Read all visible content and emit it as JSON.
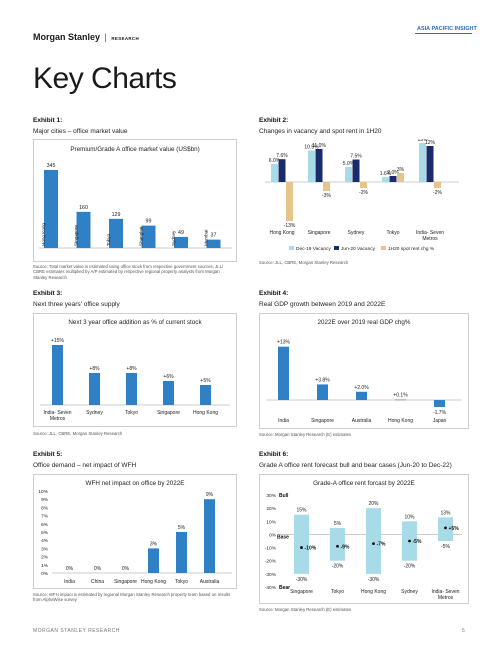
{
  "header": {
    "brand": "Morgan Stanley",
    "brand_suffix": "RESEARCH",
    "region_tag": "ASIA PACIFIC INSIGHT"
  },
  "page_title": "Key Charts",
  "footer": {
    "left": "MORGAN STANLEY RESEARCH",
    "page": "5"
  },
  "colors": {
    "bar_blue": "#2f80c4",
    "navy": "#1b2a6b",
    "light_blue": "#a8dbe8",
    "tan": "#e6c48a"
  },
  "exhibits": [
    {
      "label": "Exhibit 1:",
      "subtitle": "Major cities – office market value",
      "source": "Source: Total market value is estimated using office stock from respective government sources, JLL/ CBRE estimates multiplied by A/P estimated by respective regional property analysts from Morgan Stanley Research"
    },
    {
      "label": "Exhibit 2:",
      "subtitle": "Changes in vacancy and spot rent in 1H20",
      "source": "Source: JLL, CBRE, Morgan Stanley Research"
    },
    {
      "label": "Exhibit 3:",
      "subtitle": "Next three years' office supply",
      "source": "Source: JLL, CBRE, Morgan Stanley Research"
    },
    {
      "label": "Exhibit 4:",
      "subtitle": "Real GDP growth between 2019 and 2022E",
      "source": "Source: Morgan Stanley Research (E) estimates"
    },
    {
      "label": "Exhibit 5:",
      "subtitle": "Office demand – net impact of WFH",
      "source": "Source: WFH impact is estimated by regional Morgan Stanley Research property team based on results from AlphaWise survey"
    },
    {
      "label": "Exhibit 6:",
      "subtitle": "Grade A office rent forecast bull and bear cases (Jun-20 to Dec-22)",
      "source": "Source: Morgan Stanley Research (E) estimates"
    }
  ],
  "chart_data": [
    {
      "type": "bar",
      "title": "Premium/Grade A office market value (US$bn)",
      "categories": [
        "Hong Kong",
        "Singapore",
        "Tokyo",
        "Shanghai",
        "Sydney",
        "Mumbai"
      ],
      "values": [
        345,
        160,
        129,
        99,
        49,
        37
      ],
      "value_labels": [
        "345",
        "160",
        "129",
        "99",
        "49",
        "37"
      ],
      "ylim": [
        0,
        345
      ]
    },
    {
      "type": "bar",
      "title": "",
      "categories": [
        "Hong Kong",
        "Singapore",
        "Sydney",
        "Tokyo",
        "India- Seven Metros"
      ],
      "series": [
        {
          "name": "Dec-19 Vacancy",
          "values": [
            6.0,
            10.5,
            5.0,
            1.6,
            13.0
          ],
          "labels": [
            "6.0%",
            "10.5%",
            "5.0%",
            "1.6%",
            "13%"
          ]
        },
        {
          "name": "Jun-20 Vacancy",
          "values": [
            7.6,
            11.0,
            7.5,
            2.0,
            12.0
          ],
          "labels": [
            "7.6%",
            "11.0%",
            "7.5%",
            "2.0%",
            "12%"
          ]
        },
        {
          "name": "1H20 spot rent chg %",
          "values": [
            -13,
            -3,
            -2,
            3,
            -2
          ],
          "labels": [
            "-13%",
            "-3%",
            "-2%",
            "3%",
            "-2%"
          ]
        }
      ],
      "ylim": [
        -14,
        14
      ]
    },
    {
      "type": "bar",
      "title": "Next 3 year office addition as % of current stock",
      "categories": [
        "India- Seven Metros",
        "Sydney",
        "Tokyo",
        "Singapore",
        "Hong Kong"
      ],
      "values": [
        15,
        8,
        8,
        6,
        5
      ],
      "value_labels": [
        "+15%",
        "+8%",
        "+8%",
        "+6%",
        "+5%"
      ],
      "ylim": [
        0,
        16
      ]
    },
    {
      "type": "bar",
      "title": "2022E over 2019 real GDP chg%",
      "categories": [
        "India",
        "Singapore",
        "Australia",
        "Hong Kong",
        "Japan"
      ],
      "values": [
        13,
        3.8,
        2.0,
        0.1,
        -1.7
      ],
      "value_labels": [
        "+13%",
        "+3.8%",
        "+2.0%",
        "+0.1%",
        "-1.7%"
      ],
      "ylim": [
        -2,
        14
      ]
    },
    {
      "type": "bar",
      "title": "WFH net impact on office by 2022E",
      "categories": [
        "India",
        "China",
        "Singapore",
        "Hong Kong",
        "Tokyo",
        "Australia"
      ],
      "values": [
        0,
        0,
        0,
        3,
        5,
        9
      ],
      "value_labels": [
        "0%",
        "0%",
        "0%",
        "3%",
        "5%",
        "9%"
      ],
      "yticks": [
        "0%",
        "1%",
        "2%",
        "3%",
        "4%",
        "5%",
        "6%",
        "7%",
        "8%",
        "9%",
        "10%"
      ],
      "ylim": [
        0,
        10
      ]
    },
    {
      "type": "bar",
      "title": "Grade-A office rent forcast by 2022E",
      "categories": [
        "Singapore",
        "Tokyo",
        "Hong Kong",
        "Sydney",
        "India- Seven Metros"
      ],
      "bull": [
        15,
        5,
        20,
        10,
        13
      ],
      "bear": [
        -30,
        -20,
        -30,
        -20,
        -5
      ],
      "base": [
        -10,
        -9,
        -7,
        -5,
        5
      ],
      "bull_labels": [
        "15%",
        "5%",
        "20%",
        "10%",
        "13%"
      ],
      "bear_labels": [
        "-30%",
        "-20%",
        "-30%",
        "-20%",
        "-5%"
      ],
      "base_labels": [
        "-10%",
        "-9%",
        "-7%",
        "-5%",
        "+5%"
      ],
      "case_labels": {
        "bull": "Bull",
        "base": "Base",
        "bear": "Bear"
      },
      "yticks": [
        "30%",
        "20%",
        "10%",
        "0%",
        "-10%",
        "-20%",
        "-30%",
        "-40%"
      ],
      "ylim": [
        -40,
        30
      ]
    }
  ]
}
